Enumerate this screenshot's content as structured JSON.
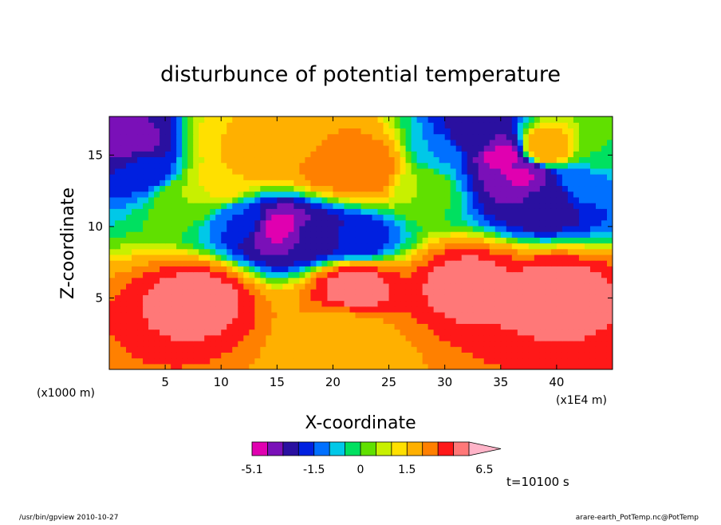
{
  "chart_data": {
    "type": "heatmap",
    "title": "disturbunce of potential temperature",
    "xlabel": "X-coordinate",
    "ylabel": "Z-coordinate",
    "x_unit_label": "(x1E4 m)",
    "y_unit_label": "(x1000 m)",
    "xlim": [
      0,
      45
    ],
    "ylim": [
      0,
      17.7
    ],
    "x_ticks": [
      5,
      10,
      15,
      20,
      25,
      30,
      35,
      40
    ],
    "y_ticks": [
      5,
      10,
      15
    ],
    "time_label": "t=10100 s",
    "colorbar": {
      "levels": [
        -5.1,
        -4.1,
        -3.1,
        -2.1,
        -1.5,
        -1.0,
        -0.5,
        0,
        0.5,
        1.0,
        1.5,
        2.5,
        3.5,
        4.5,
        5.5,
        6.5
      ],
      "colors": [
        "#e000b0",
        "#7a10b8",
        "#2a10a0",
        "#0020e0",
        "#0070ff",
        "#00c8e8",
        "#00e060",
        "#60e000",
        "#c8f000",
        "#ffe000",
        "#ffb000",
        "#ff8000",
        "#ff1818",
        "#ff7878",
        "#ffb4c8"
      ],
      "tick_labels": [
        "-5.1",
        "-1.5",
        "0",
        "1.5",
        "6.5"
      ],
      "tick_values": [
        -5.1,
        -1.5,
        0,
        1.5,
        6.5
      ]
    },
    "features": [
      {
        "x": 2,
        "z": 16,
        "value": -3.5
      },
      {
        "x": 3,
        "z": 14,
        "value": -2
      },
      {
        "x": 7,
        "z": 12,
        "value": 0.5
      },
      {
        "x": 10,
        "z": 13,
        "value": 1.5
      },
      {
        "x": 11,
        "z": 16,
        "value": 1.5
      },
      {
        "x": 14,
        "z": 15,
        "value": 2.5
      },
      {
        "x": 16,
        "z": 16,
        "value": 1.5
      },
      {
        "x": 20,
        "z": 14.5,
        "value": 3.5
      },
      {
        "x": 23,
        "z": 14,
        "value": 3.5
      },
      {
        "x": 15,
        "z": 10,
        "value": -4.5
      },
      {
        "x": 18,
        "z": 9.4,
        "value": -3
      },
      {
        "x": 22,
        "z": 9.2,
        "value": -2
      },
      {
        "x": 12,
        "z": 10.5,
        "value": -1.5
      },
      {
        "x": 28,
        "z": 13,
        "value": 0.5
      },
      {
        "x": 30,
        "z": 15,
        "value": -1
      },
      {
        "x": 33,
        "z": 16,
        "value": -3
      },
      {
        "x": 35,
        "z": 15,
        "value": -4.5
      },
      {
        "x": 37,
        "z": 13.5,
        "value": -4.2
      },
      {
        "x": 39,
        "z": 12,
        "value": -3
      },
      {
        "x": 39,
        "z": 15.5,
        "value": 2.5
      },
      {
        "x": 42,
        "z": 13,
        "value": -1.2
      },
      {
        "x": 44,
        "z": 15.5,
        "value": 0
      },
      {
        "x": 8,
        "z": 5,
        "value": 5
      },
      {
        "x": 22,
        "z": 5.8,
        "value": 5
      },
      {
        "x": 32,
        "z": 6,
        "value": 5
      },
      {
        "x": 40,
        "z": 5.5,
        "value": 5
      },
      {
        "x": 21,
        "z": 2.5,
        "value": 1.8
      }
    ]
  },
  "footer": {
    "left": "/usr/bin/gpview  2010-10-27",
    "right": "arare-earth_PotTemp.nc@PotTemp"
  }
}
